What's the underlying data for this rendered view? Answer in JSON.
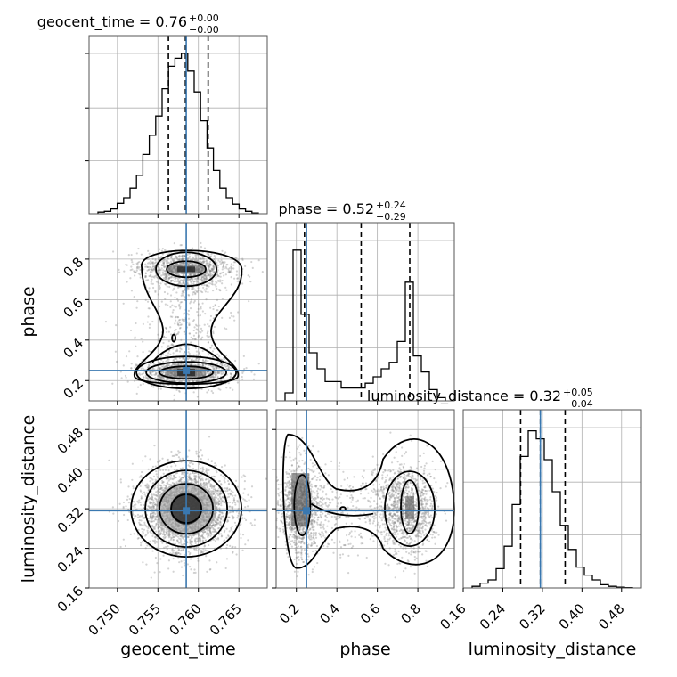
{
  "chart_data": {
    "type": "corner",
    "parameters": [
      "geocent_time",
      "phase",
      "luminosity_distance"
    ],
    "truths": {
      "geocent_time": 0.7585,
      "phase": 0.25,
      "luminosity_distance": 0.316
    },
    "ranges": {
      "geocent_time": [
        0.7465,
        0.7685
      ],
      "phase": [
        0.1,
        0.98
      ],
      "luminosity_distance": [
        0.16,
        0.52
      ]
    },
    "ticks": {
      "geocent_time": [
        0.75,
        0.755,
        0.76,
        0.765
      ],
      "phase": [
        0.2,
        0.4,
        0.6,
        0.8
      ],
      "luminosity_distance": [
        0.16,
        0.24,
        0.32,
        0.4,
        0.48
      ]
    },
    "tick_labels": {
      "geocent_time": [
        "0.750",
        "0.755",
        "0.760",
        "0.765"
      ],
      "phase": [
        "0.2",
        "0.4",
        "0.6",
        "0.8"
      ],
      "luminosity_distance": [
        "0.16",
        "0.24",
        "0.32",
        "0.40",
        "0.48"
      ]
    },
    "phase_y_ticks": [
      "0.2",
      "0.4",
      "0.6",
      "0.8"
    ],
    "distance_y_ticks": [
      "0.16",
      "0.24",
      "0.32",
      "0.40",
      "0.48"
    ],
    "axis_labels": {
      "geocent_time": "geocent_time",
      "phase": "phase",
      "luminosity_distance": "luminosity_distance"
    },
    "quantiles": {
      "geocent_time": [
        0.7563,
        0.7584,
        0.7612
      ],
      "phase": [
        0.24,
        0.52,
        0.76
      ],
      "luminosity_distance": [
        0.276,
        0.316,
        0.366
      ]
    },
    "titles": [
      {
        "main": "geocent_time = 0.76",
        "sup": "+0.00",
        "sub": "−0.00"
      },
      {
        "main": "phase = 0.52",
        "sup": "+0.24",
        "sub": "−0.29"
      },
      {
        "main": "luminosity_distance = 0.32",
        "sup": "+0.05",
        "sub": "−0.04"
      }
    ],
    "histograms": {
      "geocent_time": [
        0.01,
        0.015,
        0.03,
        0.065,
        0.1,
        0.16,
        0.24,
        0.37,
        0.49,
        0.61,
        0.78,
        0.92,
        0.97,
        1.0,
        0.89,
        0.76,
        0.58,
        0.41,
        0.27,
        0.16,
        0.1,
        0.06,
        0.03,
        0.015,
        0.005
      ],
      "phase": [
        0.05,
        0.94,
        0.54,
        0.3,
        0.2,
        0.12,
        0.12,
        0.08,
        0.08,
        0.08,
        0.11,
        0.15,
        0.2,
        0.24,
        0.37,
        0.74,
        0.28,
        0.18,
        0.07,
        0.02
      ],
      "luminosity_distance": [
        0.01,
        0.03,
        0.05,
        0.12,
        0.26,
        0.52,
        0.82,
        0.98,
        0.93,
        0.8,
        0.6,
        0.39,
        0.24,
        0.13,
        0.08,
        0.05,
        0.02,
        0.01,
        0.005,
        0.002
      ]
    },
    "grid": true
  }
}
